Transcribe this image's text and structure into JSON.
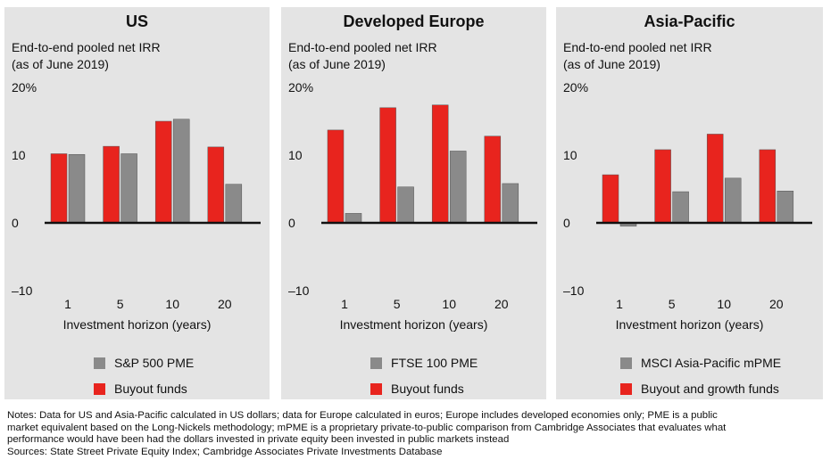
{
  "colors": {
    "buyout": "#e8241e",
    "pme": "#8a8a8a",
    "panel_bg": "#e4e4e4"
  },
  "chart_data": [
    {
      "type": "bar",
      "title": "US",
      "subtitle_lines": [
        "End-to-end pooled net IRR",
        "(as of June 2019)"
      ],
      "xlabel": "Investment horizon (years)",
      "categories": [
        "1",
        "5",
        "10",
        "20"
      ],
      "ylim": [
        -10,
        20
      ],
      "yticks": [
        {
          "value": 20,
          "label": "20%"
        },
        {
          "value": 10,
          "label": "10"
        },
        {
          "value": 0,
          "label": "0"
        },
        {
          "value": -10,
          "label": "–10"
        }
      ],
      "series": [
        {
          "name": "Buyout funds",
          "color_key": "buyout",
          "values": [
            10.2,
            11.3,
            15.0,
            11.2
          ]
        },
        {
          "name": "S&P 500 PME",
          "color_key": "pme",
          "values": [
            10.1,
            10.2,
            15.3,
            5.7
          ]
        }
      ],
      "legend": [
        {
          "label": "S&P 500 PME",
          "color_key": "pme"
        },
        {
          "label": "Buyout funds",
          "color_key": "buyout"
        }
      ]
    },
    {
      "type": "bar",
      "title": "Developed Europe",
      "subtitle_lines": [
        "End-to-end pooled net IRR",
        "(as of June 2019)"
      ],
      "xlabel": "Investment horizon (years)",
      "categories": [
        "1",
        "5",
        "10",
        "20"
      ],
      "ylim": [
        -10,
        20
      ],
      "yticks": [
        {
          "value": 20,
          "label": "20%"
        },
        {
          "value": 10,
          "label": "10"
        },
        {
          "value": 0,
          "label": "0"
        },
        {
          "value": -10,
          "label": "–10"
        }
      ],
      "series": [
        {
          "name": "Buyout funds",
          "color_key": "buyout",
          "values": [
            13.7,
            17.0,
            17.4,
            12.8
          ]
        },
        {
          "name": "FTSE 100 PME",
          "color_key": "pme",
          "values": [
            1.4,
            5.3,
            10.6,
            5.8
          ]
        }
      ],
      "legend": [
        {
          "label": "FTSE 100 PME",
          "color_key": "pme"
        },
        {
          "label": "Buyout funds",
          "color_key": "buyout"
        }
      ]
    },
    {
      "type": "bar",
      "title": "Asia-Pacific",
      "subtitle_lines": [
        "End-to-end pooled net IRR",
        "(as of June 2019)"
      ],
      "xlabel": "Investment horizon (years)",
      "categories": [
        "1",
        "5",
        "10",
        "20"
      ],
      "ylim": [
        -10,
        20
      ],
      "yticks": [
        {
          "value": 20,
          "label": "20%"
        },
        {
          "value": 10,
          "label": "10"
        },
        {
          "value": 0,
          "label": "0"
        },
        {
          "value": -10,
          "label": "–10"
        }
      ],
      "series": [
        {
          "name": "Buyout and growth funds",
          "color_key": "buyout",
          "values": [
            7.1,
            10.8,
            13.1,
            10.8
          ]
        },
        {
          "name": "MSCI Asia-Pacific mPME",
          "color_key": "pme",
          "values": [
            -0.5,
            4.6,
            6.6,
            4.7
          ]
        }
      ],
      "legend": [
        {
          "label": "MSCI Asia-Pacific mPME",
          "color_key": "pme"
        },
        {
          "label": "Buyout and growth funds",
          "color_key": "buyout"
        }
      ]
    }
  ],
  "notes": {
    "lines": [
      "Notes: Data for US and Asia-Pacific calculated in US dollars; data for Europe calculated in euros; Europe includes developed economies only; PME is a public",
      "market equivalent based on the Long-Nickels methodology; mPME is a proprietary private-to-public comparison from Cambridge Associates that evaluates what",
      "performance would have been had the dollars invested in private equity been invested in public markets instead",
      "Sources: State Street Private Equity Index; Cambridge Associates Private Investments Database"
    ]
  }
}
